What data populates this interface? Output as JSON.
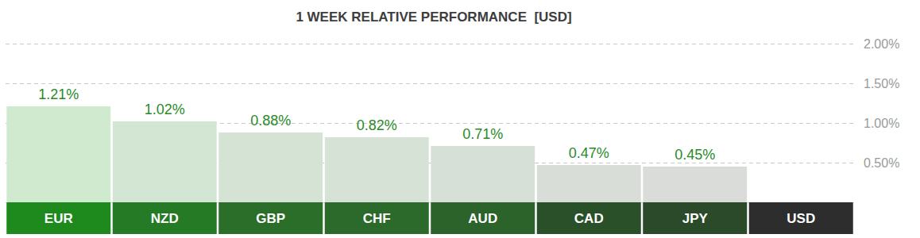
{
  "chart_data": {
    "type": "bar",
    "title": "1 WEEK RELATIVE PERFORMANCE  [USD]",
    "categories": [
      "EUR",
      "NZD",
      "GBP",
      "CHF",
      "AUD",
      "CAD",
      "JPY",
      "USD"
    ],
    "values": [
      1.21,
      1.02,
      0.88,
      0.82,
      0.71,
      0.47,
      0.45,
      null
    ],
    "value_labels": [
      "1.21%",
      "1.02%",
      "0.88%",
      "0.82%",
      "0.71%",
      "0.47%",
      "0.45%",
      null
    ],
    "colors": [
      "#d0ead0",
      "#d3e6d3",
      "#d5e3d5",
      "#d5e2d5",
      "#d6e0d6",
      "#d8ddd8",
      "#d9dcd9",
      "#dcdcdc"
    ],
    "ylim": [
      0,
      2
    ],
    "yticks": [
      {
        "value": 0.5,
        "label": "0.50%"
      },
      {
        "value": 1,
        "label": "1.00%"
      },
      {
        "value": 1.5,
        "label": "1.50%"
      },
      {
        "value": 2,
        "label": "2.00%"
      }
    ],
    "grid": true,
    "data_labels": true
  }
}
